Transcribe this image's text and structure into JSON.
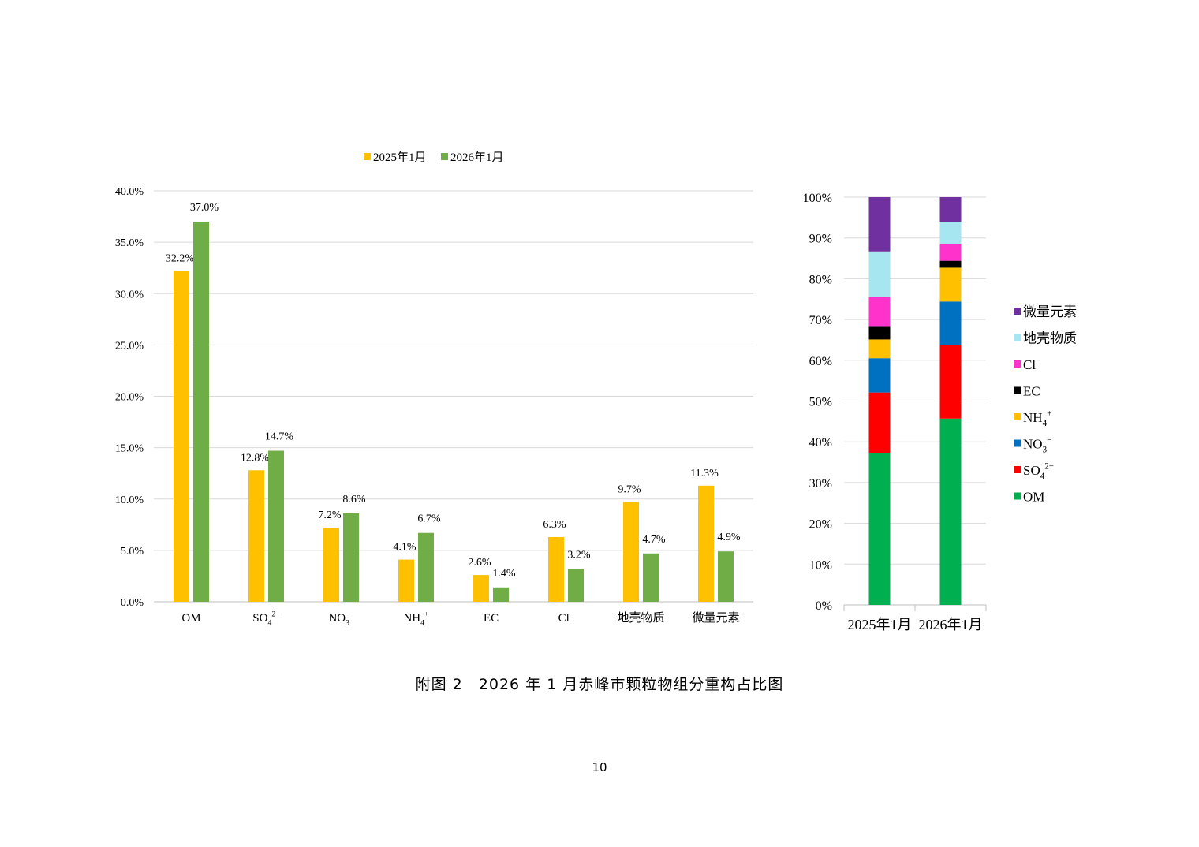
{
  "chart_data": [
    {
      "type": "bar",
      "categories": [
        {
          "base": "OM",
          "sub": "",
          "sup": ""
        },
        {
          "base": "SO",
          "sub": "4",
          "sup": "2−"
        },
        {
          "base": "NO",
          "sub": "3",
          "sup": "−"
        },
        {
          "base": "NH",
          "sub": "4",
          "sup": "+"
        },
        {
          "base": "EC",
          "sub": "",
          "sup": ""
        },
        {
          "base": "Cl",
          "sub": "",
          "sup": "−"
        },
        {
          "base": "地壳物质",
          "sub": "",
          "sup": ""
        },
        {
          "base": "微量元素",
          "sub": "",
          "sup": ""
        }
      ],
      "series": [
        {
          "name": "2025年1月",
          "color": "#FFC000",
          "values": [
            32.2,
            12.8,
            7.2,
            4.1,
            2.6,
            6.3,
            9.7,
            11.3
          ],
          "labels": [
            "32.2%",
            "12.8%",
            "7.2%",
            "4.1%",
            "2.6%",
            "6.3%",
            "9.7%",
            "11.3%"
          ]
        },
        {
          "name": "2026年1月",
          "color": "#70AD47",
          "values": [
            37.0,
            14.7,
            8.6,
            6.7,
            1.4,
            3.2,
            4.7,
            4.9
          ],
          "labels": [
            "37.0%",
            "14.7%",
            "8.6%",
            "6.7%",
            "1.4%",
            "3.2%",
            "4.7%",
            "4.9%"
          ]
        }
      ],
      "ylim": [
        0,
        40
      ],
      "yticks": [
        "0.0%",
        "5.0%",
        "10.0%",
        "15.0%",
        "20.0%",
        "25.0%",
        "30.0%",
        "35.0%",
        "40.0%"
      ],
      "grid": true,
      "legend_position": "top"
    },
    {
      "type": "bar",
      "stacked": true,
      "categories": [
        "2025年1月",
        "2026年1月"
      ],
      "series": [
        {
          "name": {
            "base": "OM",
            "sub": "",
            "sup": ""
          },
          "color": "#00B050",
          "values": [
            37.3,
            45.7
          ]
        },
        {
          "name": {
            "base": "SO",
            "sub": "4",
            "sup": "2−"
          },
          "color": "#FF0000",
          "values": [
            14.8,
            18.1
          ]
        },
        {
          "name": {
            "base": "NO",
            "sub": "3",
            "sup": "−"
          },
          "color": "#0070C0",
          "values": [
            8.4,
            10.6
          ]
        },
        {
          "name": {
            "base": "NH",
            "sub": "4",
            "sup": "+"
          },
          "color": "#FFC000",
          "values": [
            4.6,
            8.3
          ]
        },
        {
          "name": {
            "base": "EC",
            "sub": "",
            "sup": ""
          },
          "color": "#000000",
          "values": [
            3.1,
            1.7
          ]
        },
        {
          "name": {
            "base": "Cl",
            "sub": "",
            "sup": "−"
          },
          "color": "#FF33CC",
          "values": [
            7.3,
            4.0
          ]
        },
        {
          "name": {
            "base": "地壳物质",
            "sub": "",
            "sup": ""
          },
          "color": "#A6E6F0",
          "values": [
            11.2,
            5.6
          ]
        },
        {
          "name": {
            "base": "微量元素",
            "sub": "",
            "sup": ""
          },
          "color": "#7030A0",
          "values": [
            13.3,
            6.0
          ]
        }
      ],
      "ylim": [
        0,
        100
      ],
      "yticks": [
        "0%",
        "10%",
        "20%",
        "30%",
        "40%",
        "50%",
        "60%",
        "70%",
        "80%",
        "90%",
        "100%"
      ],
      "grid": true,
      "legend_position": "right"
    }
  ],
  "caption": "附图 2　2026 年 1 月赤峰市颗粒物组分重构占比图",
  "page_number": "10"
}
